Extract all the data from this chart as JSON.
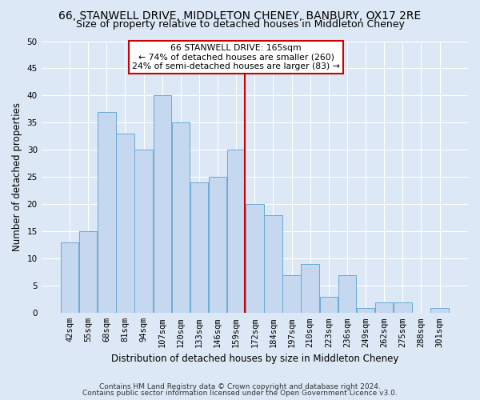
{
  "title": "66, STANWELL DRIVE, MIDDLETON CHENEY, BANBURY, OX17 2RE",
  "subtitle": "Size of property relative to detached houses in Middleton Cheney",
  "xlabel": "Distribution of detached houses by size in Middleton Cheney",
  "ylabel": "Number of detached properties",
  "categories": [
    "42sqm",
    "55sqm",
    "68sqm",
    "81sqm",
    "94sqm",
    "107sqm",
    "120sqm",
    "133sqm",
    "146sqm",
    "159sqm",
    "172sqm",
    "184sqm",
    "197sqm",
    "210sqm",
    "223sqm",
    "236sqm",
    "249sqm",
    "262sqm",
    "275sqm",
    "288sqm",
    "301sqm"
  ],
  "values": [
    13,
    15,
    37,
    33,
    30,
    40,
    35,
    24,
    25,
    30,
    20,
    18,
    7,
    9,
    3,
    7,
    1,
    2,
    2,
    0,
    1
  ],
  "bar_color": "#c5d8f0",
  "bar_edge_color": "#6aaad4",
  "vline_color": "#cc0000",
  "annotation_text": "66 STANWELL DRIVE: 165sqm\n← 74% of detached houses are smaller (260)\n24% of semi-detached houses are larger (83) →",
  "annotation_box_color": "#ffffff",
  "annotation_box_edge": "#cc0000",
  "ylim": [
    0,
    50
  ],
  "yticks": [
    0,
    5,
    10,
    15,
    20,
    25,
    30,
    35,
    40,
    45,
    50
  ],
  "figure_bg_color": "#dce8f5",
  "plot_bg_color": "#dce8f5",
  "footer1": "Contains HM Land Registry data © Crown copyright and database right 2024.",
  "footer2": "Contains public sector information licensed under the Open Government Licence v3.0.",
  "title_fontsize": 10,
  "subtitle_fontsize": 9,
  "axis_label_fontsize": 8.5,
  "tick_fontsize": 7.5,
  "footer_fontsize": 6.5
}
